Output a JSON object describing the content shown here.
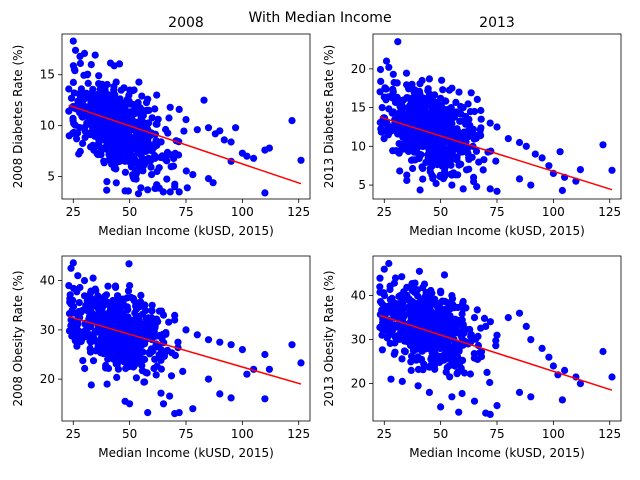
{
  "figure": {
    "suptitle": "With Median Income"
  },
  "style": {
    "point_color": "#0000ff",
    "line_color": "#ff0000"
  },
  "chart_data": [
    {
      "type": "scatter",
      "title": "2008",
      "xlabel": "Median Income (kUSD, 2015)",
      "ylabel": "2008 Diabetes Rate (%)",
      "xlim": [
        20,
        130
      ],
      "ylim": [
        2.8,
        19
      ],
      "xticks": [
        25,
        50,
        75,
        100,
        125
      ],
      "yticks": [
        5,
        10,
        15
      ],
      "trend": {
        "x": [
          23,
          126
        ],
        "y": [
          12.0,
          4.3
        ]
      },
      "cloud": {
        "x_center": 45,
        "x_spread": 10,
        "y_intercept": 14.5,
        "y_slope": -0.105,
        "y_spread": 2.0,
        "count": 650
      },
      "points": [
        [
          23,
          13.6
        ],
        [
          25,
          18.3
        ],
        [
          26,
          17.4
        ],
        [
          30,
          17.1
        ],
        [
          28,
          16.8
        ],
        [
          33,
          16.0
        ],
        [
          52,
          13.5
        ],
        [
          58,
          12.6
        ],
        [
          62,
          13.0
        ],
        [
          68,
          11.8
        ],
        [
          72,
          11.6
        ],
        [
          75,
          10.6
        ],
        [
          80,
          9.6
        ],
        [
          83,
          12.5
        ],
        [
          85,
          9.8
        ],
        [
          88,
          9.2
        ],
        [
          90,
          9.5
        ],
        [
          92,
          8.6
        ],
        [
          95,
          8.4
        ],
        [
          97,
          9.8
        ],
        [
          100,
          7.3
        ],
        [
          102,
          7.0
        ],
        [
          105,
          6.8
        ],
        [
          110,
          7.6
        ],
        [
          112,
          7.8
        ],
        [
          122,
          10.5
        ],
        [
          126,
          6.6
        ],
        [
          110,
          3.4
        ],
        [
          87,
          4.4
        ],
        [
          85,
          4.8
        ],
        [
          72,
          3.5
        ],
        [
          70,
          4.0
        ],
        [
          68,
          3.5
        ],
        [
          58,
          3.7
        ],
        [
          55,
          3.9
        ],
        [
          48,
          3.6
        ],
        [
          62,
          4.2
        ],
        [
          78,
          5.2
        ],
        [
          95,
          6.5
        ]
      ]
    },
    {
      "type": "scatter",
      "title": "2013",
      "xlabel": "Median Income (kUSD, 2015)",
      "ylabel": "2013 Diabetes Rate (%)",
      "xlim": [
        20,
        130
      ],
      "ylim": [
        3.2,
        24.5
      ],
      "xticks": [
        25,
        50,
        75,
        100,
        125
      ],
      "yticks": [
        5,
        10,
        15,
        20
      ],
      "trend": {
        "x": [
          23,
          126
        ],
        "y": [
          13.8,
          4.4
        ]
      },
      "cloud": {
        "x_center": 45,
        "x_spread": 10,
        "y_intercept": 16.0,
        "y_slope": -0.09,
        "y_spread": 2.6,
        "count": 650
      },
      "points": [
        [
          31,
          23.5
        ],
        [
          26,
          21.0
        ],
        [
          27,
          20.2
        ],
        [
          29,
          19.3
        ],
        [
          45,
          18.7
        ],
        [
          55,
          17.5
        ],
        [
          60,
          15.0
        ],
        [
          65,
          14.5
        ],
        [
          68,
          13.5
        ],
        [
          72,
          13.0
        ],
        [
          75,
          12.5
        ],
        [
          80,
          11.0
        ],
        [
          85,
          10.5
        ],
        [
          88,
          10.0
        ],
        [
          92,
          9.0
        ],
        [
          95,
          8.5
        ],
        [
          98,
          7.5
        ],
        [
          100,
          6.5
        ],
        [
          103,
          9.3
        ],
        [
          105,
          6.0
        ],
        [
          110,
          5.5
        ],
        [
          112,
          7.0
        ],
        [
          122,
          10.2
        ],
        [
          126,
          6.9
        ],
        [
          104,
          4.3
        ],
        [
          90,
          5.0
        ],
        [
          85,
          5.8
        ],
        [
          75,
          4.2
        ],
        [
          72,
          4.5
        ],
        [
          66,
          4.8
        ],
        [
          60,
          4.5
        ],
        [
          55,
          5.0
        ],
        [
          48,
          5.2
        ],
        [
          35,
          5.6
        ]
      ]
    },
    {
      "type": "scatter",
      "title": "",
      "xlabel": "Median Income (kUSD, 2015)",
      "ylabel": "2008 Obesity Rate (%)",
      "xlim": [
        20,
        130
      ],
      "ylim": [
        11.5,
        45
      ],
      "xticks": [
        25,
        50,
        75,
        100,
        125
      ],
      "yticks": [
        20,
        30,
        40
      ],
      "trend": {
        "x": [
          23,
          126
        ],
        "y": [
          32.7,
          19.0
        ]
      },
      "cloud": {
        "x_center": 45,
        "x_spread": 10,
        "y_intercept": 35.8,
        "y_slope": -0.135,
        "y_spread": 3.5,
        "count": 650
      },
      "points": [
        [
          24,
          42.5
        ],
        [
          25,
          43.6
        ],
        [
          27,
          41.0
        ],
        [
          23,
          39.0
        ],
        [
          30,
          40.0
        ],
        [
          35,
          38.0
        ],
        [
          50,
          39.0
        ],
        [
          55,
          37.0
        ],
        [
          60,
          35.0
        ],
        [
          65,
          33.0
        ],
        [
          70,
          32.0
        ],
        [
          75,
          30.0
        ],
        [
          80,
          29.0
        ],
        [
          85,
          28.0
        ],
        [
          90,
          27.5
        ],
        [
          95,
          27.0
        ],
        [
          100,
          26.0
        ],
        [
          102,
          21.0
        ],
        [
          105,
          22.0
        ],
        [
          110,
          25.0
        ],
        [
          112,
          22.0
        ],
        [
          122,
          27.0
        ],
        [
          126,
          23.3
        ],
        [
          110,
          16.0
        ],
        [
          95,
          16.2
        ],
        [
          90,
          17.0
        ],
        [
          85,
          20.0
        ],
        [
          78,
          14.0
        ],
        [
          72,
          13.2
        ],
        [
          70,
          13.0
        ],
        [
          65,
          15.0
        ],
        [
          58,
          13.2
        ],
        [
          50,
          15.0
        ],
        [
          48,
          15.5
        ],
        [
          40,
          19.0
        ],
        [
          33,
          18.8
        ]
      ]
    },
    {
      "type": "scatter",
      "title": "",
      "xlabel": "Median Income (kUSD, 2015)",
      "ylabel": "2013 Obesity Rate (%)",
      "xlim": [
        20,
        130
      ],
      "ylim": [
        11.5,
        49
      ],
      "xticks": [
        25,
        50,
        75,
        100,
        125
      ],
      "yticks": [
        20,
        30,
        40
      ],
      "trend": {
        "x": [
          23,
          126
        ],
        "y": [
          35.5,
          18.5
        ]
      },
      "cloud": {
        "x_center": 45,
        "x_spread": 10,
        "y_intercept": 39.3,
        "y_slope": -0.16,
        "y_spread": 4.0,
        "count": 650
      },
      "points": [
        [
          25,
          46.0
        ],
        [
          27,
          47.3
        ],
        [
          23,
          42.0
        ],
        [
          30,
          44.0
        ],
        [
          38,
          42.0
        ],
        [
          50,
          41.0
        ],
        [
          55,
          40.0
        ],
        [
          60,
          37.0
        ],
        [
          65,
          35.0
        ],
        [
          70,
          33.0
        ],
        [
          75,
          31.0
        ],
        [
          80,
          35.0
        ],
        [
          85,
          36.0
        ],
        [
          88,
          33.0
        ],
        [
          90,
          30.0
        ],
        [
          95,
          28.0
        ],
        [
          98,
          26.0
        ],
        [
          100,
          24.0
        ],
        [
          102,
          22.0
        ],
        [
          105,
          23.0
        ],
        [
          110,
          21.5
        ],
        [
          112,
          20.0
        ],
        [
          122,
          27.3
        ],
        [
          126,
          21.5
        ],
        [
          104,
          16.3
        ],
        [
          90,
          17.0
        ],
        [
          85,
          18.0
        ],
        [
          75,
          15.0
        ],
        [
          72,
          13.0
        ],
        [
          70,
          13.3
        ],
        [
          65,
          16.0
        ],
        [
          58,
          13.5
        ],
        [
          55,
          17.0
        ],
        [
          50,
          14.7
        ],
        [
          45,
          18.0
        ],
        [
          40,
          19.5
        ],
        [
          33,
          20.5
        ],
        [
          28,
          21.0
        ]
      ]
    }
  ]
}
